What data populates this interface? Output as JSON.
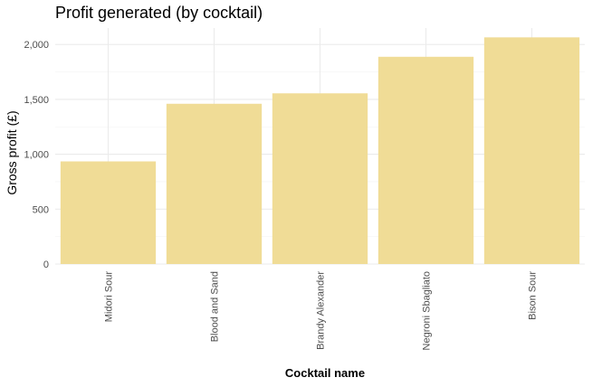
{
  "chart_data": {
    "type": "bar",
    "title": "Profit generated (by cocktail)",
    "xlabel": "Cocktail name",
    "ylabel": "Gross profit (£)",
    "categories": [
      "Midori Sour",
      "Blood and Sand",
      "Brandy Alexander",
      "Negroni Sbagliato",
      "Bison Sour"
    ],
    "values": [
      935,
      1460,
      1555,
      1888,
      2065
    ],
    "ylim": [
      0,
      2150
    ],
    "yticks": [
      0,
      500,
      1000,
      1500,
      2000
    ],
    "ytick_labels": [
      "0",
      "500",
      "1,000",
      "1,500",
      "2,000"
    ],
    "grid": true,
    "legend": "none",
    "bar_color": "#f0dc96"
  }
}
